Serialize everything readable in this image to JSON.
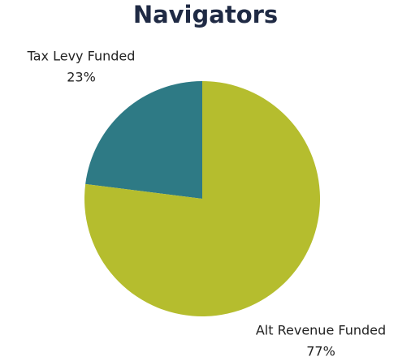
{
  "chart_data": {
    "type": "pie",
    "title": "Navigators",
    "categories": [
      "Tax Levy Funded",
      "Alt Revenue Funded"
    ],
    "values": [
      23,
      77
    ],
    "value_labels": [
      "23%",
      "77%"
    ],
    "colors": [
      "#2e7a85",
      "#b5bd2e"
    ]
  }
}
